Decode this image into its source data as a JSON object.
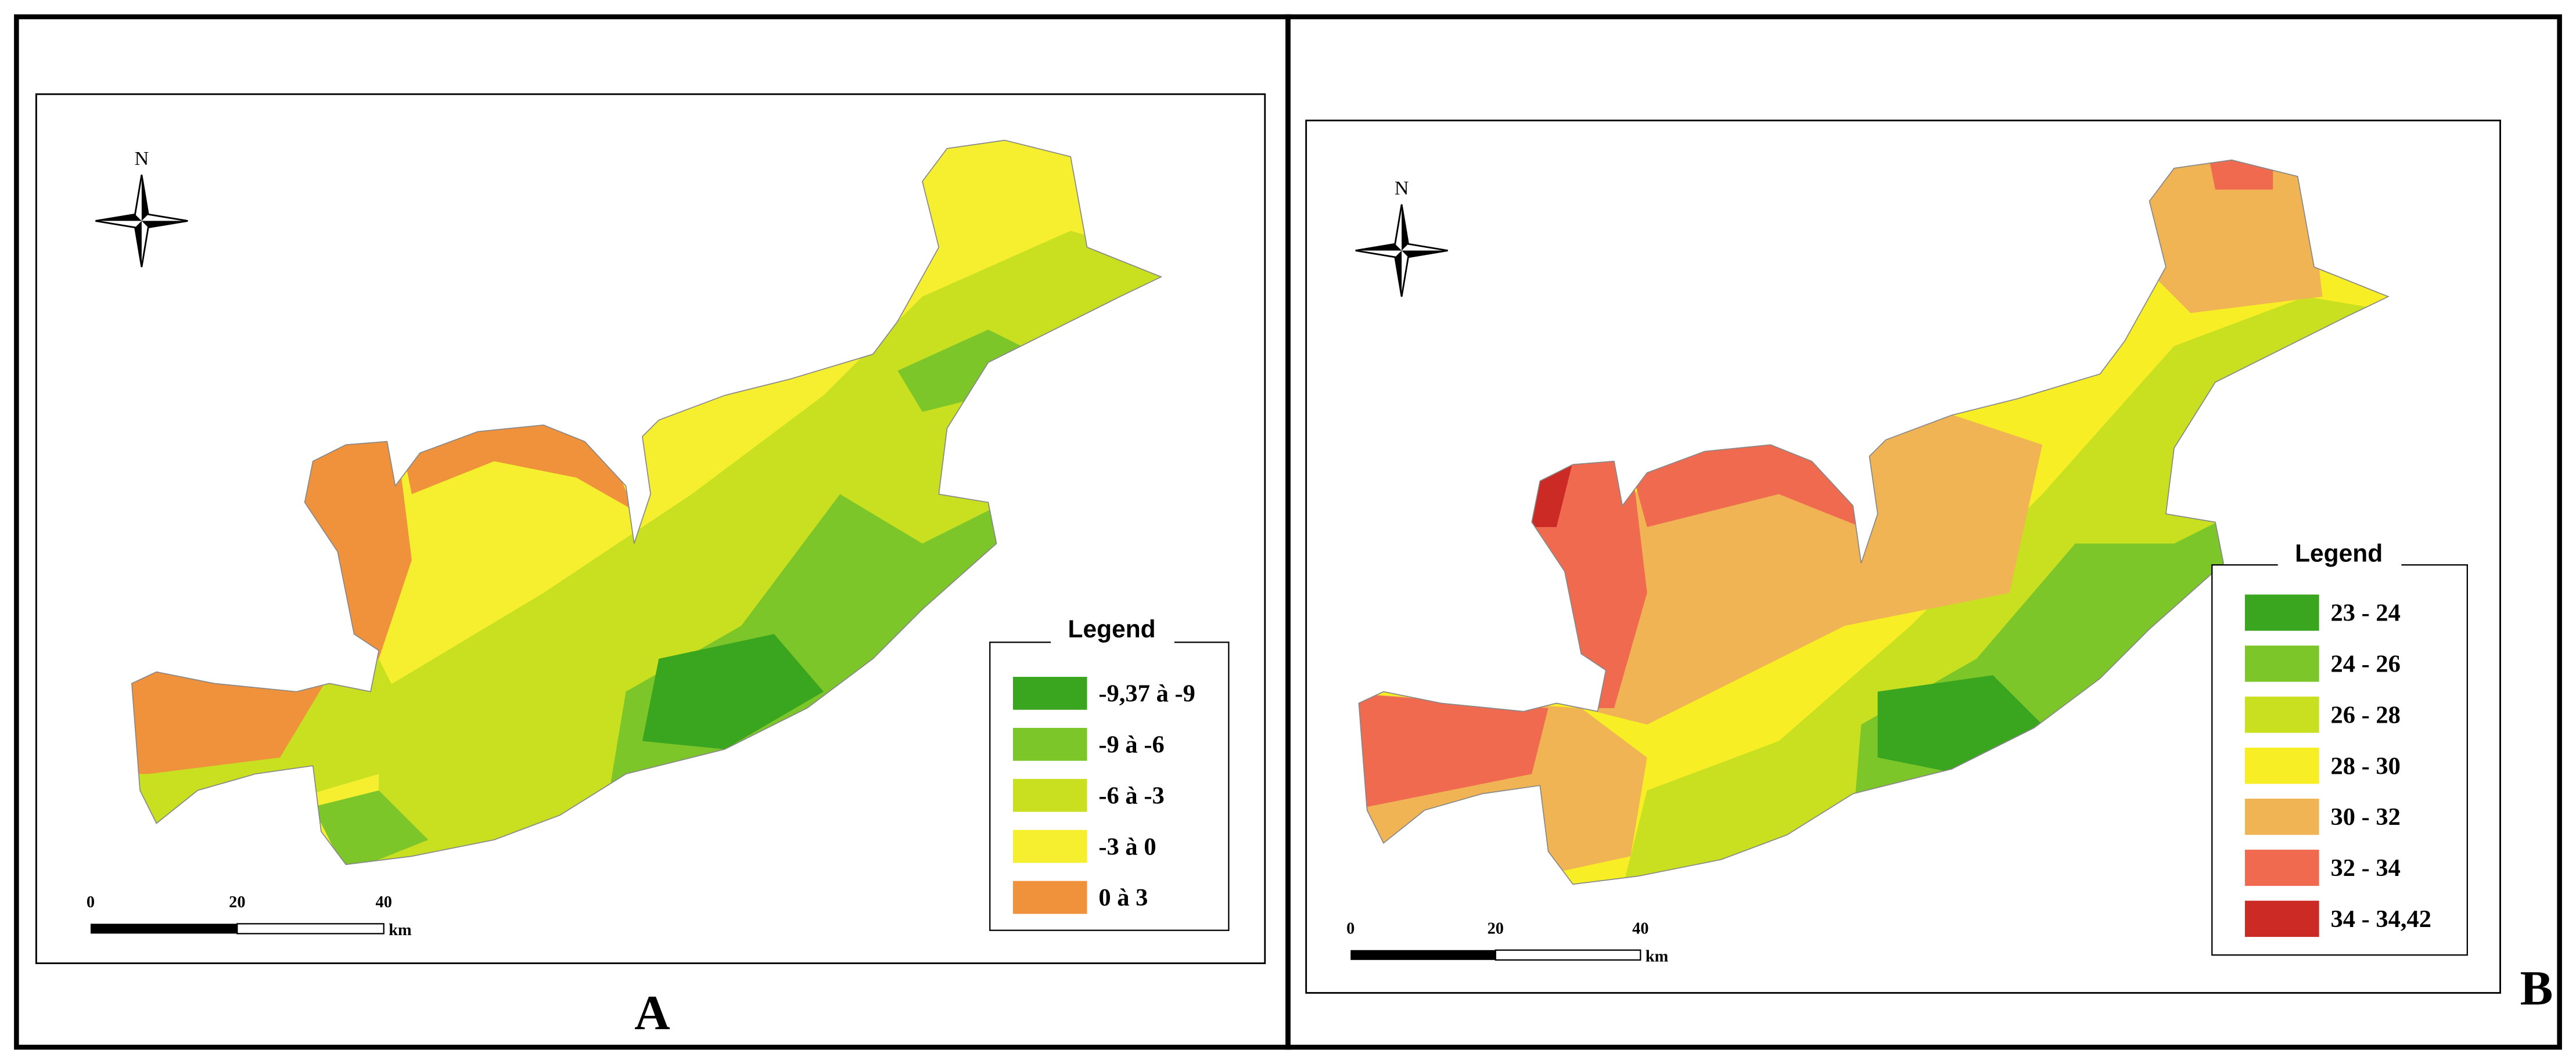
{
  "panels": [
    {
      "label": "A",
      "north": "N",
      "legend": {
        "title": "Legend",
        "items": [
          {
            "label": "-9,37 à -9",
            "color": "#3aa51f"
          },
          {
            "label": "-9 à -6",
            "color": "#7cc62a"
          },
          {
            "label": "-6 à -3",
            "color": "#c8e020"
          },
          {
            "label": "-3 à 0",
            "color": "#f5ef30"
          },
          {
            "label": "0 à 3",
            "color": "#f0913c"
          }
        ]
      },
      "scale": {
        "labels": [
          "0",
          "20",
          "40"
        ],
        "unit": "km"
      }
    },
    {
      "label": "B",
      "north": "N",
      "legend": {
        "title": "Legend",
        "items": [
          {
            "label": "23 - 24",
            "color": "#3aa51f"
          },
          {
            "label": "24 - 26",
            "color": "#7cc62a"
          },
          {
            "label": "26 - 28",
            "color": "#c8e020"
          },
          {
            "label": "28 - 30",
            "color": "#f7ee25"
          },
          {
            "label": "30 - 32",
            "color": "#f0b454"
          },
          {
            "label": "32 - 34",
            "color": "#f06a50"
          },
          {
            "label": "34 - 34,42",
            "color": "#cc2a25"
          }
        ]
      },
      "scale": {
        "labels": [
          "0",
          "20",
          "40"
        ],
        "unit": "km"
      }
    }
  ]
}
